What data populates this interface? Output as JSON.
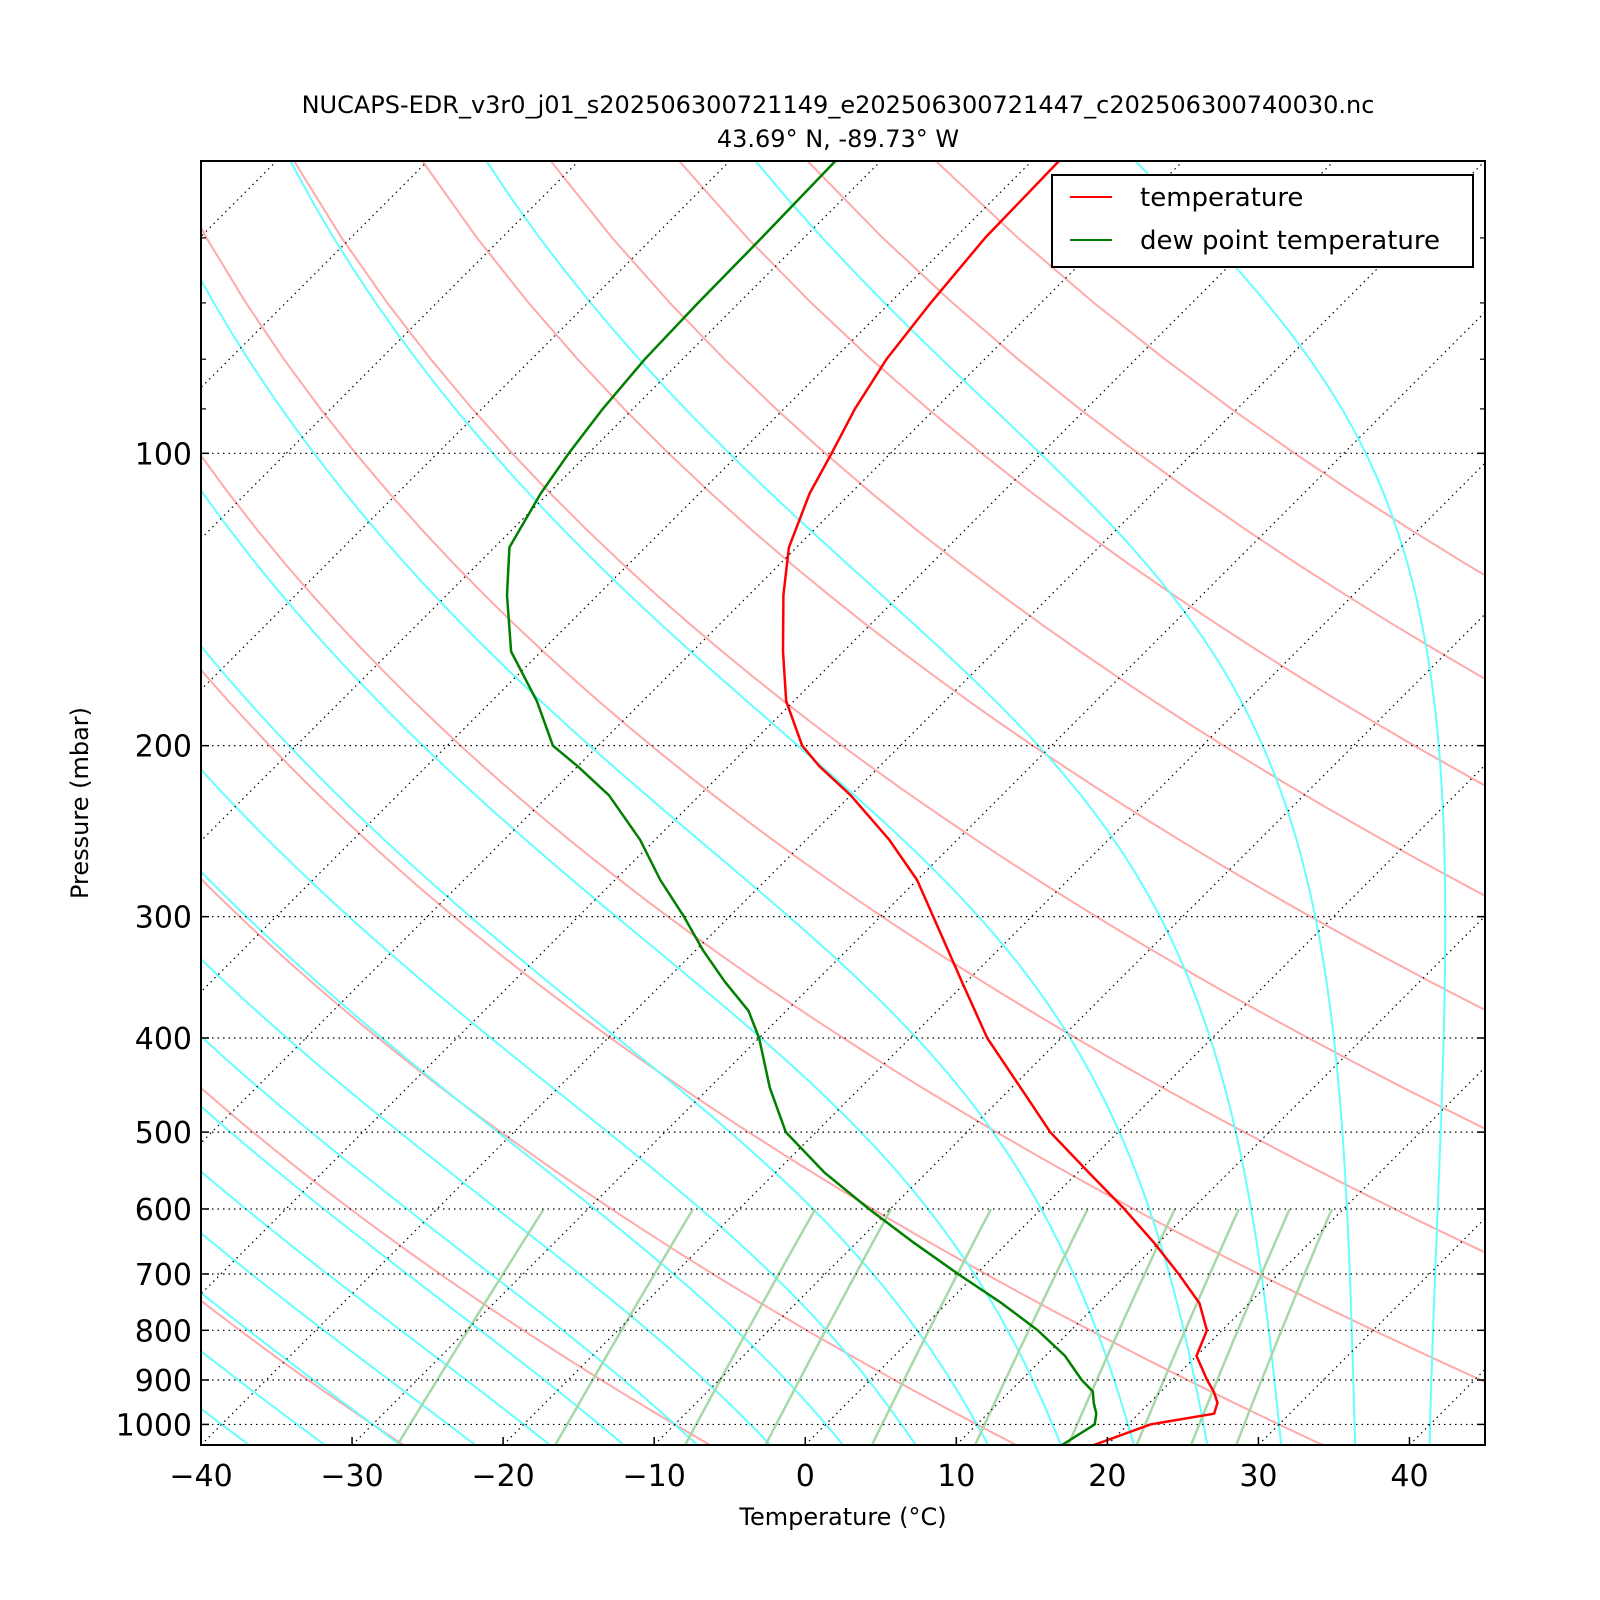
{
  "chart_data": {
    "type": "line",
    "title": "NUCAPS-EDR_v3r0_j01_s202506300721149_e202506300721447_c202506300740030.nc",
    "subtitle": "43.69° N, -89.73° W",
    "xlabel": "Temperature (°C)",
    "ylabel": "Pressure (mbar)",
    "xlim": [
      -40,
      45
    ],
    "ylim": [
      1050,
      50
    ],
    "y_scale": "log",
    "skew": true,
    "grid": true,
    "x_ticks": [
      -40,
      -30,
      -20,
      -10,
      0,
      10,
      20,
      30,
      40
    ],
    "x_tick_labels": [
      "−40",
      "−30",
      "−20",
      "−10",
      "0",
      "10",
      "20",
      "30",
      "40"
    ],
    "y_ticks": [
      100,
      200,
      300,
      400,
      500,
      600,
      700,
      800,
      900,
      1000
    ],
    "y_tick_labels": [
      "100",
      "200",
      "300",
      "400",
      "500",
      "600",
      "700",
      "800",
      "900",
      "1000"
    ],
    "legend_position": "top-right",
    "colors": {
      "temperature": "#ff0000",
      "dewpoint": "#007f00",
      "dry_adiabat": "#ffaaaa",
      "moist_adiabat": "#66ffff",
      "mixing_ratio": "#a8d8a8",
      "grid": "#000000"
    },
    "series": [
      {
        "name": "temperature",
        "pressure": [
          1050,
          1000,
          975,
          950,
          925,
          900,
          850,
          800,
          750,
          700,
          650,
          600,
          550,
          500,
          450,
          400,
          350,
          300,
          275,
          250,
          225,
          210,
          200,
          180,
          160,
          140,
          125,
          110,
          100,
          90,
          80,
          70,
          60,
          50
        ],
        "values": [
          19.1,
          21.5,
          25.0,
          24.5,
          23.5,
          22.3,
          20.0,
          19.0,
          16.7,
          13.4,
          9.7,
          5.5,
          0.7,
          -4.5,
          -9.4,
          -14.9,
          -20.3,
          -26.5,
          -30.0,
          -34.5,
          -40.0,
          -44.0,
          -46.5,
          -50.5,
          -54.0,
          -57.7,
          -60.5,
          -62.7,
          -63.9,
          -65.3,
          -66.5,
          -67.3,
          -68.0,
          -68.2
        ]
      },
      {
        "name": "dew point temperature",
        "pressure": [
          1050,
          1000,
          975,
          950,
          925,
          900,
          850,
          800,
          750,
          700,
          650,
          600,
          550,
          500,
          450,
          400,
          375,
          350,
          325,
          300,
          275,
          250,
          225,
          210,
          200,
          180,
          160,
          140,
          125,
          110,
          100,
          90,
          80,
          70,
          60,
          50
        ],
        "values": [
          17.0,
          17.8,
          17.2,
          16.3,
          15.5,
          14.0,
          11.3,
          7.8,
          3.6,
          -1.2,
          -6.2,
          -11.4,
          -16.8,
          -22.0,
          -26.0,
          -30.0,
          -32.5,
          -36.0,
          -39.5,
          -43.0,
          -47.0,
          -51.0,
          -56.0,
          -60.0,
          -63.0,
          -67.0,
          -72.0,
          -76.0,
          -79.0,
          -80.5,
          -81.3,
          -82.0,
          -82.5,
          -82.7,
          -82.8,
          -83.0
        ]
      }
    ]
  }
}
